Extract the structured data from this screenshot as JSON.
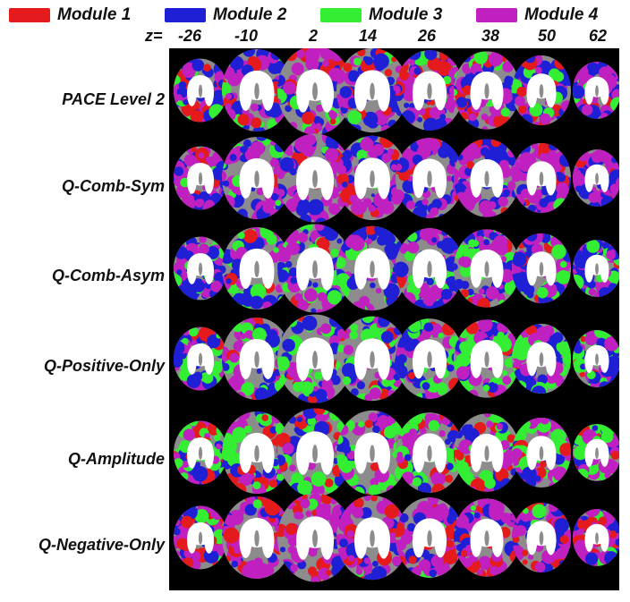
{
  "legend": [
    {
      "label": "Module 1",
      "color": "#e41a1c"
    },
    {
      "label": "Module 2",
      "color": "#1f1fd6"
    },
    {
      "label": "Module 3",
      "color": "#33ee33"
    },
    {
      "label": "Module 4",
      "color": "#c020c0"
    }
  ],
  "z_prefix": "z=",
  "z_values": [
    "-26",
    "-10",
    "2",
    "14",
    "26",
    "38",
    "50",
    "62"
  ],
  "rows": [
    {
      "label": "PACE Level 2",
      "mix": [
        0.15,
        0.35,
        0.15,
        0.35
      ]
    },
    {
      "label": "Q-Comb-Sym",
      "mix": [
        0.12,
        0.28,
        0.05,
        0.55
      ]
    },
    {
      "label": "Q-Comb-Asym",
      "mix": [
        0.05,
        0.35,
        0.25,
        0.35
      ]
    },
    {
      "label": "Q-Positive-Only",
      "mix": [
        0.05,
        0.3,
        0.3,
        0.35
      ]
    },
    {
      "label": "Q-Amplitude",
      "mix": [
        0.15,
        0.25,
        0.3,
        0.3
      ]
    },
    {
      "label": "Q-Negative-Only",
      "mix": [
        0.22,
        0.25,
        0.03,
        0.5
      ]
    }
  ],
  "colors": {
    "background": "#000000",
    "white_matter": "#ffffff",
    "gray_matter": "#8c8c8c"
  }
}
